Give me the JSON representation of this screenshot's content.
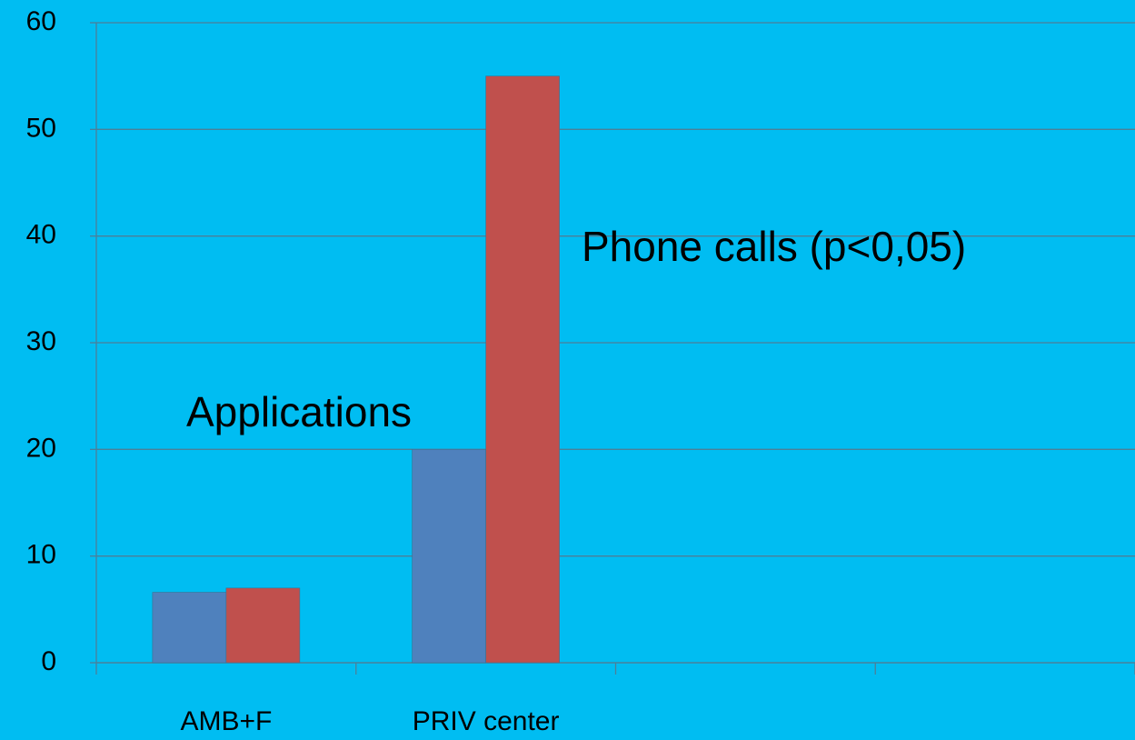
{
  "chart_data": {
    "type": "bar",
    "categories": [
      "AMB+F",
      "PRIV center",
      null,
      null
    ],
    "series": [
      {
        "name": "Applications",
        "color": "#4f81bd",
        "values": [
          6.6,
          20,
          null,
          null
        ]
      },
      {
        "name": "Phone calls (p<0,05)",
        "color": "#c0504d",
        "values": [
          7,
          55,
          null,
          null
        ]
      }
    ],
    "ylim": [
      0,
      60
    ],
    "yticks": [
      0,
      10,
      20,
      30,
      40,
      50,
      60
    ],
    "grid": true
  }
}
